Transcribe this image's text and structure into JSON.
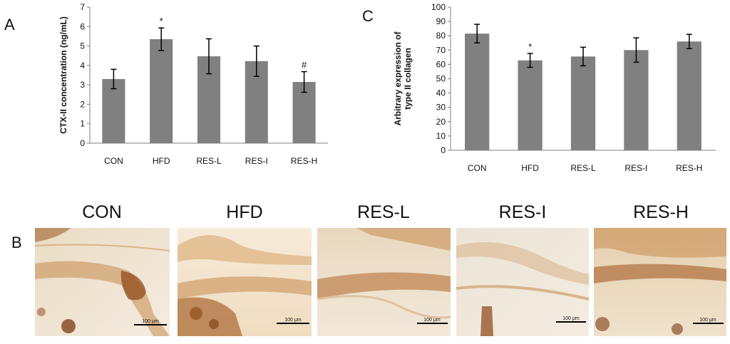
{
  "panels": {
    "a": "A",
    "b": "B",
    "c": "C"
  },
  "chart_data": [
    {
      "type": "bar",
      "panel": "A",
      "categories": [
        "CON",
        "HFD",
        "RES-L",
        "RES-I",
        "RES-H"
      ],
      "values": [
        3.3,
        5.35,
        4.47,
        4.22,
        3.15
      ],
      "errors": [
        0.5,
        0.58,
        0.9,
        0.78,
        0.53
      ],
      "annotations": [
        "",
        "*",
        "",
        "",
        "#"
      ],
      "ylabel": "CTX-II concentration (ng/mL)",
      "ylim": [
        0,
        7
      ],
      "yticks": [
        0,
        1,
        2,
        3,
        4,
        5,
        6,
        7
      ],
      "bar_color": "#808080",
      "grid": false
    },
    {
      "type": "bar",
      "panel": "C",
      "categories": [
        "CON",
        "HFD",
        "RES-L",
        "RES-I",
        "RES-H"
      ],
      "values": [
        81.5,
        62.8,
        65.5,
        70,
        76
      ],
      "errors": [
        6.5,
        4.8,
        6.5,
        8.5,
        5
      ],
      "annotations": [
        "",
        "*",
        "",
        "",
        ""
      ],
      "ylabel": [
        "Arbitrary expression of",
        "type II collagen"
      ],
      "ylim": [
        0,
        100
      ],
      "yticks": [
        0,
        10,
        20,
        30,
        40,
        50,
        60,
        70,
        80,
        90,
        100
      ],
      "bar_color": "#808080",
      "grid": false
    }
  ],
  "micrographs": [
    {
      "title": "CON",
      "scale": "100 μm"
    },
    {
      "title": "HFD",
      "scale": "100 μm"
    },
    {
      "title": "RES-L",
      "scale": "100 μm"
    },
    {
      "title": "RES-I",
      "scale": "100 μm"
    },
    {
      "title": "RES-H",
      "scale": "100 μm"
    }
  ],
  "colors": {
    "bar": "#808080",
    "stain_dark": "#8b4513",
    "stain_mid": "#c07a3a",
    "tissue_light": "#f2e6d2"
  }
}
